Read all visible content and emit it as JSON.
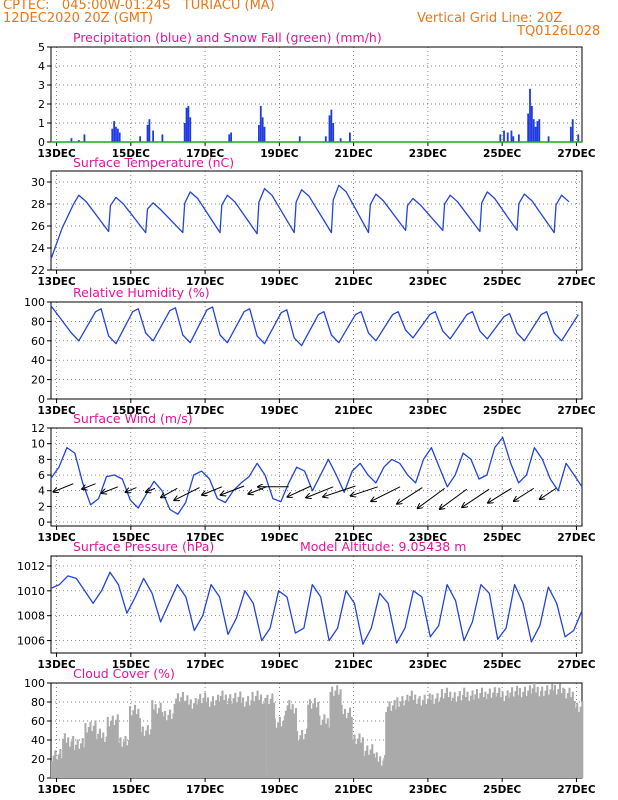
{
  "header": {
    "line1_left": "CPTEC:   045:00W-01:24S   TURIACU (MA)",
    "line2_left": "12DEC2020 20Z (GMT)",
    "line2_right": "Vertical Grid Line: 20Z",
    "line3_right": "TQ0126L028"
  },
  "colors": {
    "header": "#e8781a",
    "title": "#e6149a",
    "line": "#2244dd",
    "precip": "#1f3be0",
    "snow": "#1ea51e",
    "cloud": "#aaaaaa",
    "wind_arrow": "#000000"
  },
  "date_labels": [
    "13DEC",
    "15DEC",
    "17DEC",
    "19DEC",
    "21DEC",
    "23DEC",
    "25DEC",
    "27DEC"
  ],
  "chart_data": [
    {
      "id": "precip",
      "type": "bar",
      "title": "Precipitation (blue) and Snow Fall (green) (mm/h)",
      "ylim": [
        0,
        5
      ],
      "yticks": [
        "0",
        "1",
        "2",
        "3",
        "4",
        "5"
      ],
      "x_unit": "day offset from 12DEC 20Z",
      "x_range": [
        0,
        14.3
      ],
      "series": [
        {
          "name": "Precipitation",
          "points": [
            [
              0.55,
              0.2
            ],
            [
              0.75,
              0.1
            ],
            [
              0.9,
              0.4
            ],
            [
              1.65,
              0.7
            ],
            [
              1.7,
              1.1
            ],
            [
              1.75,
              0.8
            ],
            [
              1.8,
              0.7
            ],
            [
              1.85,
              0.5
            ],
            [
              2.4,
              0.3
            ],
            [
              2.6,
              0.9
            ],
            [
              2.65,
              1.2
            ],
            [
              2.75,
              0.6
            ],
            [
              3.0,
              0.4
            ],
            [
              3.6,
              1.0
            ],
            [
              3.65,
              1.8
            ],
            [
              3.7,
              1.9
            ],
            [
              3.75,
              1.3
            ],
            [
              4.8,
              0.4
            ],
            [
              4.85,
              0.5
            ],
            [
              5.6,
              0.9
            ],
            [
              5.65,
              1.9
            ],
            [
              5.7,
              1.3
            ],
            [
              5.75,
              0.8
            ],
            [
              6.7,
              0.3
            ],
            [
              7.4,
              0.3
            ],
            [
              7.5,
              1.4
            ],
            [
              7.55,
              1.7
            ],
            [
              7.6,
              1.0
            ],
            [
              7.8,
              0.2
            ],
            [
              8.05,
              0.5
            ],
            [
              12.1,
              0.4
            ],
            [
              12.2,
              0.6
            ],
            [
              12.3,
              0.5
            ],
            [
              12.4,
              0.6
            ],
            [
              12.45,
              0.3
            ],
            [
              12.6,
              0.4
            ],
            [
              12.85,
              1.5
            ],
            [
              12.9,
              2.8
            ],
            [
              12.95,
              1.9
            ],
            [
              13.0,
              1.2
            ],
            [
              13.05,
              0.8
            ],
            [
              13.1,
              1.1
            ],
            [
              13.15,
              1.2
            ],
            [
              13.4,
              0.3
            ],
            [
              14.0,
              0.8
            ],
            [
              14.05,
              1.2
            ],
            [
              14.2,
              0.4
            ]
          ]
        },
        {
          "name": "Snow Fall",
          "points": []
        }
      ]
    },
    {
      "id": "temp",
      "type": "line",
      "title": "Surface Temperature (nC)",
      "ylim": [
        22,
        31
      ],
      "yticks": [
        "22",
        "24",
        "26",
        "28",
        "30"
      ],
      "x_range": [
        0,
        14.3
      ],
      "base": 26.7,
      "amp": 1.8,
      "peak_offset": 0.85,
      "peaks": [
        28.8,
        28.6,
        28.1,
        29.1,
        28.8,
        29.4,
        29.3,
        29.7,
        28.9,
        28.5,
        28.8,
        29.1,
        28.9,
        28.8,
        28.7
      ],
      "troughs": [
        null,
        25.5,
        25.4,
        25.4,
        25.4,
        25.3,
        25.4,
        25.4,
        25.4,
        25.6,
        25.6,
        25.5,
        25.6,
        25.4,
        25.3,
        26.0
      ],
      "start": [
        23.0,
        25.8
      ]
    },
    {
      "id": "rh",
      "type": "line",
      "title": "Relative Humidity (%)",
      "ylim": [
        0,
        100
      ],
      "yticks": [
        "0",
        "20",
        "40",
        "60",
        "80",
        "100"
      ],
      "x_range": [
        0,
        14.3
      ],
      "peaks": [
        96,
        93,
        93,
        94,
        95,
        93,
        92,
        90,
        90,
        90,
        90,
        90,
        88,
        90,
        90
      ],
      "troughs": [
        60,
        57,
        60,
        58,
        58,
        57,
        55,
        58,
        60,
        63,
        62,
        62,
        60,
        60,
        62
      ],
      "start": [
        96,
        86
      ]
    },
    {
      "id": "wind",
      "type": "line",
      "title": "Surface Wind (m/s)",
      "ylim": [
        -0.5,
        12
      ],
      "yticks": [
        "0",
        "2",
        "4",
        "6",
        "8",
        "10",
        "12"
      ],
      "x_range": [
        0,
        14.3
      ],
      "values": [
        5.6,
        7.0,
        9.5,
        8.8,
        5.0,
        2.2,
        3.0,
        5.8,
        6.0,
        5.5,
        2.8,
        1.8,
        3.5,
        5.2,
        4.0,
        1.6,
        1.0,
        2.5,
        6.0,
        6.5,
        5.5,
        3.0,
        2.5,
        4.0,
        5.0,
        5.8,
        7.5,
        6.0,
        3.0,
        2.6,
        5.0,
        7.0,
        6.5,
        4.0,
        6.0,
        8.0,
        6.0,
        3.8,
        6.5,
        7.5,
        6.0,
        5.0,
        7.0,
        8.0,
        7.5,
        6.0,
        5.0,
        8.0,
        9.5,
        7.0,
        4.5,
        6.0,
        8.8,
        8.0,
        5.5,
        6.0,
        9.5,
        10.8,
        7.5,
        5.0,
        6.0,
        9.5,
        8.0,
        5.5,
        4.0,
        7.5,
        6.0,
        4.5
      ],
      "arrows": [
        [
          0.6,
          4.9,
          -2.2,
          0.9
        ],
        [
          1.2,
          4.9,
          -1.5,
          0.6
        ],
        [
          1.8,
          4.5,
          -1.8,
          0.7
        ],
        [
          2.3,
          4.4,
          -1.2,
          0.5
        ],
        [
          2.8,
          4.3,
          -1.0,
          0.4
        ],
        [
          3.4,
          4.3,
          -1.8,
          1.0
        ],
        [
          4.0,
          4.4,
          -2.8,
          1.4
        ],
        [
          4.6,
          4.5,
          -2.2,
          0.9
        ],
        [
          5.2,
          4.6,
          -2.6,
          1.0
        ],
        [
          5.8,
          4.5,
          -2.0,
          0.8
        ],
        [
          6.4,
          4.5,
          -3.4,
          0.0
        ],
        [
          7.0,
          4.6,
          -2.6,
          1.2
        ],
        [
          7.6,
          4.5,
          -3.0,
          1.2
        ],
        [
          8.2,
          4.6,
          -3.6,
          1.2
        ],
        [
          8.8,
          4.5,
          -3.0,
          1.0
        ],
        [
          9.4,
          4.5,
          -3.2,
          1.6
        ],
        [
          10.0,
          4.4,
          -2.8,
          1.8
        ],
        [
          10.6,
          4.3,
          -3.0,
          2.2
        ],
        [
          11.2,
          4.2,
          -3.0,
          2.2
        ],
        [
          11.8,
          4.2,
          -3.0,
          2.0
        ],
        [
          12.4,
          4.3,
          -2.6,
          1.6
        ],
        [
          13.0,
          4.3,
          -2.2,
          1.4
        ],
        [
          13.6,
          4.3,
          -1.8,
          1.2
        ]
      ]
    },
    {
      "id": "press",
      "type": "line",
      "title": "Surface Pressure (hPa)",
      "subtitle": "Model Altitude: 9.05438 m",
      "ylim": [
        1005,
        1012.8
      ],
      "yticks": [
        "1006",
        "1008",
        "1010",
        "1012"
      ],
      "x_range": [
        0,
        14.3
      ],
      "values": [
        1010.2,
        1010.5,
        1011.2,
        1011.0,
        1010.0,
        1009.0,
        1010.0,
        1011.5,
        1010.5,
        1008.2,
        1009.5,
        1011.0,
        1009.8,
        1007.5,
        1009.0,
        1010.5,
        1009.5,
        1006.8,
        1008.0,
        1010.5,
        1009.5,
        1006.5,
        1007.8,
        1010.0,
        1009.0,
        1006.0,
        1007.0,
        1010.0,
        1009.5,
        1006.6,
        1007.0,
        1010.5,
        1009.5,
        1006.0,
        1007.0,
        1010.0,
        1009.0,
        1005.7,
        1007.0,
        1009.8,
        1009.0,
        1005.8,
        1007.0,
        1010.0,
        1009.5,
        1006.3,
        1007.2,
        1010.5,
        1009.2,
        1006.0,
        1007.5,
        1010.5,
        1009.8,
        1006.1,
        1007.0,
        1010.5,
        1009.0,
        1005.9,
        1007.2,
        1010.3,
        1009.0,
        1006.3,
        1006.8,
        1008.4
      ]
    },
    {
      "id": "cloud",
      "type": "bar",
      "title": "Cloud Cover (%)",
      "ylim": [
        0,
        100
      ],
      "yticks": [
        "0",
        "20",
        "40",
        "60",
        "80",
        "100"
      ],
      "x_range": [
        0,
        14.3
      ],
      "segments": [
        [
          0.0,
          25
        ],
        [
          0.3,
          40
        ],
        [
          0.6,
          35
        ],
        [
          0.9,
          55
        ],
        [
          1.2,
          45
        ],
        [
          1.5,
          60
        ],
        [
          1.8,
          40
        ],
        [
          2.1,
          70
        ],
        [
          2.4,
          50
        ],
        [
          2.7,
          75
        ],
        [
          3.0,
          65
        ],
        [
          3.3,
          85
        ],
        [
          3.6,
          80
        ],
        [
          3.9,
          83
        ],
        [
          4.2,
          82
        ],
        [
          4.5,
          85
        ],
        [
          4.8,
          84
        ],
        [
          5.1,
          82
        ],
        [
          5.4,
          85
        ],
        [
          5.7,
          80
        ],
        [
          5.75,
          5
        ],
        [
          5.8,
          82
        ],
        [
          6.0,
          60
        ],
        [
          6.3,
          75
        ],
        [
          6.6,
          45
        ],
        [
          6.9,
          80
        ],
        [
          7.2,
          60
        ],
        [
          7.5,
          92
        ],
        [
          7.8,
          70
        ],
        [
          8.1,
          40
        ],
        [
          8.4,
          30
        ],
        [
          8.7,
          20
        ],
        [
          9.0,
          75
        ],
        [
          9.3,
          82
        ],
        [
          9.6,
          85
        ],
        [
          9.9,
          82
        ],
        [
          10.2,
          85
        ],
        [
          10.5,
          88
        ],
        [
          10.8,
          86
        ],
        [
          11.1,
          88
        ],
        [
          11.4,
          88
        ],
        [
          11.7,
          90
        ],
        [
          12.0,
          88
        ],
        [
          12.3,
          90
        ],
        [
          12.6,
          92
        ],
        [
          12.9,
          93
        ],
        [
          13.2,
          92
        ],
        [
          13.5,
          95
        ],
        [
          13.8,
          88
        ],
        [
          14.1,
          75
        ]
      ]
    }
  ]
}
